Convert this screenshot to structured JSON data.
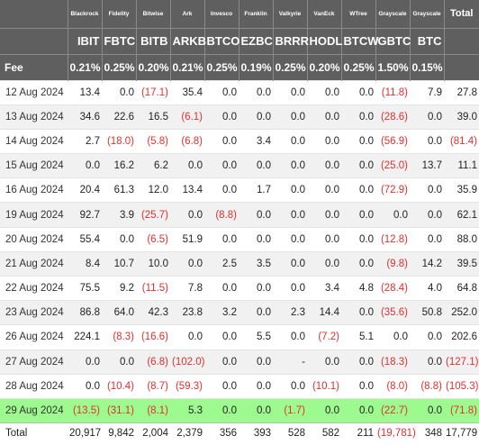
{
  "chart_data": {
    "type": "table",
    "issuers": [
      "Blackrock",
      "Fidelity",
      "Bitwise",
      "Ark",
      "Invesco",
      "Franklin",
      "Valkyrie",
      "VanEck",
      "WTree",
      "Grayscale",
      "Grayscale"
    ],
    "total_label": "Total",
    "tickers": [
      "IBIT",
      "FBTC",
      "BITB",
      "ARKB",
      "BTCO",
      "EZBC",
      "BRRR",
      "HODL",
      "BTCW",
      "GBTC",
      "BTC"
    ],
    "fee_label": "Fee",
    "fees": [
      "0.21%",
      "0.25%",
      "0.20%",
      "0.21%",
      "0.25%",
      "0.19%",
      "0.25%",
      "0.20%",
      "0.25%",
      "1.50%",
      "0.15%"
    ],
    "highlight_color": "#9dfa8e",
    "negative_color": "#e03030",
    "rows": [
      {
        "date": "12 Aug 2024",
        "values": [
          "13.4",
          "0.0",
          "(17.1)",
          "35.4",
          "0.0",
          "0.0",
          "0.0",
          "0.0",
          "0.0",
          "(11.8)",
          "7.9"
        ],
        "total": "27.8"
      },
      {
        "date": "13 Aug 2024",
        "values": [
          "34.6",
          "22.6",
          "16.5",
          "(6.1)",
          "0.0",
          "0.0",
          "0.0",
          "0.0",
          "0.0",
          "(28.6)",
          "0.0"
        ],
        "total": "39.0"
      },
      {
        "date": "14 Aug 2024",
        "values": [
          "2.7",
          "(18.0)",
          "(5.8)",
          "(6.8)",
          "0.0",
          "3.4",
          "0.0",
          "0.0",
          "0.0",
          "(56.9)",
          "0.0"
        ],
        "total": "(81.4)"
      },
      {
        "date": "15 Aug 2024",
        "values": [
          "0.0",
          "16.2",
          "6.2",
          "0.0",
          "0.0",
          "0.0",
          "0.0",
          "0.0",
          "0.0",
          "(25.0)",
          "13.7"
        ],
        "total": "11.1"
      },
      {
        "date": "16 Aug 2024",
        "values": [
          "20.4",
          "61.3",
          "12.0",
          "13.4",
          "0.0",
          "1.7",
          "0.0",
          "0.0",
          "0.0",
          "(72.9)",
          "0.0"
        ],
        "total": "35.9"
      },
      {
        "date": "19 Aug 2024",
        "values": [
          "92.7",
          "3.9",
          "(25.7)",
          "0.0",
          "(8.8)",
          "0.0",
          "0.0",
          "0.0",
          "0.0",
          "0.0",
          "0.0"
        ],
        "total": "62.1"
      },
      {
        "date": "20 Aug 2024",
        "values": [
          "55.4",
          "0.0",
          "(6.5)",
          "51.9",
          "0.0",
          "0.0",
          "0.0",
          "0.0",
          "0.0",
          "(12.8)",
          "0.0"
        ],
        "total": "88.0"
      },
      {
        "date": "21 Aug 2024",
        "values": [
          "8.4",
          "10.7",
          "10.0",
          "0.0",
          "2.5",
          "3.5",
          "0.0",
          "0.0",
          "0.0",
          "(9.8)",
          "14.2"
        ],
        "total": "39.5"
      },
      {
        "date": "22 Aug 2024",
        "values": [
          "75.5",
          "9.2",
          "(11.5)",
          "7.8",
          "0.0",
          "0.0",
          "0.0",
          "3.4",
          "4.8",
          "(28.4)",
          "4.0"
        ],
        "total": "64.8"
      },
      {
        "date": "23 Aug 2024",
        "values": [
          "86.8",
          "64.0",
          "42.3",
          "23.8",
          "3.2",
          "0.0",
          "2.3",
          "14.4",
          "0.0",
          "(35.6)",
          "50.8"
        ],
        "total": "252.0"
      },
      {
        "date": "26 Aug 2024",
        "values": [
          "224.1",
          "(8.3)",
          "(16.6)",
          "0.0",
          "0.0",
          "5.5",
          "0.0",
          "(7.2)",
          "5.1",
          "0.0",
          "0.0"
        ],
        "total": "202.6"
      },
      {
        "date": "27 Aug 2024",
        "values": [
          "0.0",
          "0.0",
          "(6.8)",
          "(102.0)",
          "0.0",
          "0.0",
          "-",
          "0.0",
          "0.0",
          "(18.3)",
          "0.0"
        ],
        "total": "(127.1)"
      },
      {
        "date": "28 Aug 2024",
        "values": [
          "0.0",
          "(10.4)",
          "(8.7)",
          "(59.3)",
          "0.0",
          "0.0",
          "0.0",
          "(10.1)",
          "0.0",
          "(8.0)",
          "(8.8)"
        ],
        "total": "(105.3)"
      },
      {
        "date": "29 Aug 2024",
        "values": [
          "(13.5)",
          "(31.1)",
          "(8.1)",
          "5.3",
          "0.0",
          "0.0",
          "(1.7)",
          "0.0",
          "0.0",
          "(22.7)",
          "0.0"
        ],
        "total": "(71.8)",
        "highlight": true
      }
    ],
    "totals_label": "Total",
    "totals": [
      "20,917",
      "9,842",
      "2,004",
      "2,379",
      "356",
      "393",
      "528",
      "582",
      "211",
      "(19,781)",
      "348"
    ],
    "grand_total": "17,779"
  }
}
